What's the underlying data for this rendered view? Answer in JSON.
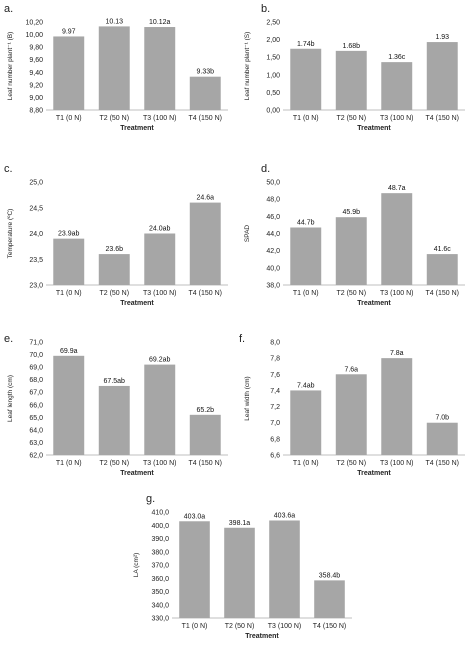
{
  "colors": {
    "bar": "#a6a6a6",
    "axis": "#bfbfbf",
    "text": "#222222"
  },
  "chart_data": [
    {
      "panel": "a.",
      "type": "bar",
      "categories": [
        "T1 (0 N)",
        "T2 (50 N)",
        "T3 (100 N)",
        "T4 (150 N)"
      ],
      "values": [
        9.97,
        10.13,
        10.12,
        9.33
      ],
      "data_labels": [
        "9.97",
        "10.13",
        "10.12a",
        "9.33b"
      ],
      "ylabel": "Leaf number plant⁻¹ (B)",
      "xlabel": "Treatment",
      "ylim": [
        8.8,
        10.2
      ],
      "yticks": [
        "8,80",
        "9,00",
        "9,20",
        "9,40",
        "9,60",
        "9,80",
        "10,00",
        "10,20"
      ],
      "grid": false
    },
    {
      "panel": "b.",
      "type": "bar",
      "categories": [
        "T1 (0 N)",
        "T2 (50 N)",
        "T3 (100 N)",
        "T4 (150 N)"
      ],
      "values": [
        1.74,
        1.68,
        1.36,
        1.93
      ],
      "data_labels": [
        "1.74b",
        "1.68b",
        "1.36c",
        "1.93"
      ],
      "ylabel": "Leaf number plant⁻¹ (S)",
      "xlabel": "Treatment",
      "ylim": [
        0,
        2.5
      ],
      "yticks": [
        "0,00",
        "0,50",
        "1,00",
        "1,50",
        "2,00",
        "2,50"
      ],
      "grid": false
    },
    {
      "panel": "c.",
      "type": "bar",
      "categories": [
        "T1 (0 N)",
        "T2 (50 N)",
        "T3 (100 N)",
        "T4 (150 N)"
      ],
      "values": [
        23.9,
        23.6,
        24.0,
        24.6
      ],
      "data_labels": [
        "23.9ab",
        "23.6b",
        "24.0ab",
        "24.6a"
      ],
      "ylabel": "Temperature (ºC)",
      "xlabel": "Treatment",
      "ylim": [
        23.0,
        25.0
      ],
      "yticks": [
        "23,0",
        "23,5",
        "24,0",
        "24,5",
        "25,0"
      ],
      "grid": false
    },
    {
      "panel": "d.",
      "type": "bar",
      "categories": [
        "T1 (0 N)",
        "T2 (50 N)",
        "T3 (100 N)",
        "T4 (150 N)"
      ],
      "values": [
        44.7,
        45.9,
        48.7,
        41.6
      ],
      "data_labels": [
        "44.7b",
        "45.9b",
        "48.7a",
        "41.6c"
      ],
      "ylabel": "SPAD",
      "xlabel": "Treatment",
      "ylim": [
        38.0,
        50.0
      ],
      "yticks": [
        "38,0",
        "40,0",
        "42,0",
        "44,0",
        "46,0",
        "48,0",
        "50,0"
      ],
      "grid": false
    },
    {
      "panel": "e.",
      "type": "bar",
      "categories": [
        "T1 (0 N)",
        "T2 (50 N)",
        "T3 (100 N)",
        "T4 (150 N)"
      ],
      "values": [
        69.9,
        67.5,
        69.2,
        65.2
      ],
      "data_labels": [
        "69.9a",
        "67.5ab",
        "69.2ab",
        "65.2b"
      ],
      "ylabel": "Leaf length (cm)",
      "xlabel": "Treatment",
      "ylim": [
        62.0,
        71.0
      ],
      "yticks": [
        "62,0",
        "63,0",
        "64,0",
        "65,0",
        "66,0",
        "67,0",
        "68,0",
        "69,0",
        "70,0",
        "71,0"
      ],
      "grid": false
    },
    {
      "panel": "f.",
      "type": "bar",
      "categories": [
        "T1 (0 N)",
        "T2 (50 N)",
        "T3 (100 N)",
        "T4 (150 N)"
      ],
      "values": [
        7.4,
        7.6,
        7.8,
        7.0
      ],
      "data_labels": [
        "7.4ab",
        "7.6a",
        "7.8a",
        "7.0b"
      ],
      "ylabel": "Leaf width (cm)",
      "xlabel": "Treatment",
      "ylim": [
        6.6,
        8.0
      ],
      "yticks": [
        "6,6",
        "6,8",
        "7,0",
        "7,2",
        "7,4",
        "7,6",
        "7,8",
        "8,0"
      ],
      "grid": false
    },
    {
      "panel": "g.",
      "type": "bar",
      "categories": [
        "T1 (0 N)",
        "T2 (50 N)",
        "T3 (100 N)",
        "T4 (150 N)"
      ],
      "values": [
        403.0,
        398.1,
        403.6,
        358.4
      ],
      "data_labels": [
        "403.0a",
        "398.1a",
        "403.6a",
        "358.4b"
      ],
      "ylabel": "LA (cm²)",
      "xlabel": "Treatment",
      "ylim": [
        330.0,
        410.0
      ],
      "yticks": [
        "330,0",
        "340,0",
        "350,0",
        "360,0",
        "370,0",
        "380,0",
        "390,0",
        "400,0",
        "410,0"
      ],
      "grid": false
    }
  ]
}
